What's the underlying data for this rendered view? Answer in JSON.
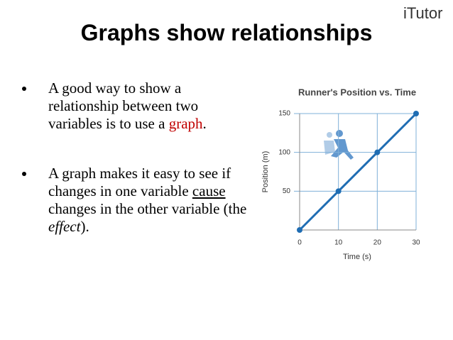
{
  "logo": "iTutor",
  "title": "Graphs show relationships",
  "bullets": [
    [
      "A good way to show a relationship between two variables is to use a ",
      "graph",
      "."
    ],
    [
      "A graph makes it easy to see if changes in one variable ",
      "cause",
      " changes in the other variable (the ",
      "effect",
      ")."
    ]
  ],
  "chart_data": {
    "type": "line",
    "title": "Runner's Position vs. Time",
    "x_label": "Time (s)",
    "y_label": "Position (m)",
    "x": [
      0,
      10,
      20,
      30
    ],
    "series": [
      {
        "name": "Position",
        "color": "#1f6db3",
        "values": [
          0,
          50,
          100,
          150
        ]
      }
    ],
    "xlim": [
      0,
      30
    ],
    "ylim": [
      0,
      150
    ],
    "xticks": [
      0,
      10,
      20,
      30
    ],
    "yticks": [
      50,
      100,
      150
    ],
    "grid": true
  }
}
